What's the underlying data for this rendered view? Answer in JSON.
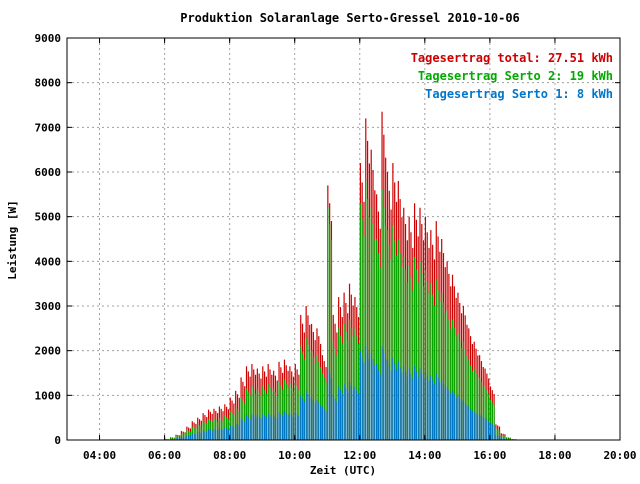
{
  "chart_data": {
    "type": "bar",
    "title": "Produktion Solaranlage Serto-Gressel 2010-10-06",
    "xlabel": "Zeit (UTC)",
    "ylabel": "Leistung [W]",
    "xlim": [
      "03:00",
      "20:00"
    ],
    "ylim": [
      0,
      9000
    ],
    "xticks": [
      "04:00",
      "06:00",
      "08:00",
      "10:00",
      "12:00",
      "14:00",
      "16:00",
      "18:00",
      "20:00"
    ],
    "yticks": [
      "0",
      "1000",
      "2000",
      "3000",
      "4000",
      "5000",
      "6000",
      "7000",
      "8000",
      "9000"
    ],
    "grid": true,
    "legend_position": "top-right",
    "stacked": true,
    "colors": {
      "total": "#cc0000",
      "serto2": "#00aa00",
      "serto1": "#0077cc"
    },
    "legend": [
      {
        "text": "Tagesertrag total: 27.51 kWh",
        "color": "#cc0000"
      },
      {
        "text": "Tagesertrag Serto 2: 19 kWh",
        "color": "#00aa00"
      },
      {
        "text": "Tagesertrag Serto 1: 8 kWh",
        "color": "#0077cc"
      }
    ],
    "series": [
      {
        "name": "total",
        "x": [
          "06:00",
          "06:10",
          "06:20",
          "06:30",
          "06:40",
          "06:50",
          "07:00",
          "07:10",
          "07:20",
          "07:30",
          "07:40",
          "07:50",
          "08:00",
          "08:10",
          "08:20",
          "08:30",
          "08:40",
          "08:50",
          "09:00",
          "09:10",
          "09:20",
          "09:30",
          "09:40",
          "09:50",
          "10:00",
          "10:10",
          "10:20",
          "10:30",
          "10:40",
          "10:50",
          "11:00",
          "11:10",
          "11:20",
          "11:30",
          "11:40",
          "11:50",
          "12:00",
          "12:10",
          "12:20",
          "12:30",
          "12:40",
          "12:50",
          "13:00",
          "13:10",
          "13:20",
          "13:30",
          "13:40",
          "13:50",
          "14:00",
          "14:10",
          "14:20",
          "14:30",
          "14:40",
          "14:50",
          "15:00",
          "15:10",
          "15:20",
          "15:30",
          "15:40",
          "15:50",
          "16:00",
          "16:10",
          "16:20",
          "16:30",
          "16:40",
          "16:50"
        ],
        "values": [
          20,
          60,
          120,
          200,
          300,
          420,
          500,
          600,
          680,
          700,
          750,
          800,
          950,
          1100,
          1400,
          1650,
          1700,
          1600,
          1650,
          1700,
          1550,
          1750,
          1800,
          1650,
          1700,
          2800,
          3000,
          2600,
          2500,
          1900,
          5700,
          2800,
          3200,
          3300,
          3500,
          3200,
          6200,
          7200,
          6500,
          5500,
          7350,
          6000,
          6200,
          5800,
          5200,
          5000,
          5300,
          5200,
          5000,
          4700,
          4900,
          4500,
          4000,
          3700,
          3300,
          3000,
          2500,
          2200,
          1900,
          1600,
          1200,
          350,
          150,
          60,
          20,
          5
        ]
      },
      {
        "name": "Serto 2",
        "x": [
          "06:00",
          "06:10",
          "06:20",
          "06:30",
          "06:40",
          "06:50",
          "07:00",
          "07:10",
          "07:20",
          "07:30",
          "07:40",
          "07:50",
          "08:00",
          "08:10",
          "08:20",
          "08:30",
          "08:40",
          "08:50",
          "09:00",
          "09:10",
          "09:20",
          "09:30",
          "09:40",
          "09:50",
          "10:00",
          "10:10",
          "10:20",
          "10:30",
          "10:40",
          "10:50",
          "11:00",
          "11:10",
          "11:20",
          "11:30",
          "11:40",
          "11:50",
          "12:00",
          "12:10",
          "12:20",
          "12:30",
          "12:40",
          "12:50",
          "13:00",
          "13:10",
          "13:20",
          "13:30",
          "13:40",
          "13:50",
          "14:00",
          "14:10",
          "14:20",
          "14:30",
          "14:40",
          "14:50",
          "15:00",
          "15:10",
          "15:20",
          "15:30",
          "15:40",
          "15:50",
          "16:00",
          "16:10",
          "16:20",
          "16:30",
          "16:40",
          "16:50"
        ],
        "values": [
          15,
          45,
          90,
          150,
          220,
          300,
          350,
          420,
          470,
          480,
          500,
          550,
          650,
          750,
          950,
          1150,
          1200,
          1150,
          1200,
          1250,
          1150,
          1300,
          1350,
          1250,
          1300,
          2100,
          2300,
          2000,
          1900,
          1500,
          5200,
          2200,
          2500,
          2600,
          2700,
          2500,
          5300,
          5800,
          5200,
          4500,
          5600,
          4700,
          4800,
          4500,
          4100,
          3900,
          4100,
          4000,
          3800,
          3500,
          3600,
          3300,
          2900,
          2700,
          2400,
          2200,
          1800,
          1600,
          1400,
          1200,
          900,
          250,
          100,
          45,
          15,
          4
        ]
      },
      {
        "name": "Serto 1",
        "x": [
          "06:00",
          "06:10",
          "06:20",
          "06:30",
          "06:40",
          "06:50",
          "07:00",
          "07:10",
          "07:20",
          "07:30",
          "07:40",
          "07:50",
          "08:00",
          "08:10",
          "08:20",
          "08:30",
          "08:40",
          "08:50",
          "09:00",
          "09:10",
          "09:20",
          "09:30",
          "09:40",
          "09:50",
          "10:00",
          "10:10",
          "10:20",
          "10:30",
          "10:40",
          "10:50",
          "11:00",
          "11:10",
          "11:20",
          "11:30",
          "11:40",
          "11:50",
          "12:00",
          "12:10",
          "12:20",
          "12:30",
          "12:40",
          "12:50",
          "13:00",
          "13:10",
          "13:20",
          "13:30",
          "13:40",
          "13:50",
          "14:00",
          "14:10",
          "14:20",
          "14:30",
          "14:40",
          "14:50",
          "15:00",
          "15:10",
          "15:20",
          "15:30",
          "15:40",
          "15:50",
          "16:00",
          "16:10",
          "16:20",
          "16:30",
          "16:40",
          "16:50"
        ],
        "values": [
          8,
          20,
          45,
          75,
          110,
          150,
          180,
          210,
          240,
          250,
          260,
          280,
          330,
          380,
          480,
          550,
          580,
          560,
          580,
          600,
          560,
          620,
          650,
          600,
          620,
          1000,
          1100,
          950,
          900,
          750,
          1600,
          1000,
          1200,
          1250,
          1300,
          1200,
          2000,
          2100,
          1950,
          1700,
          2100,
          1800,
          1850,
          1750,
          1650,
          1600,
          1650,
          1600,
          1550,
          1450,
          1500,
          1350,
          1200,
          1100,
          1000,
          900,
          750,
          650,
          580,
          500,
          380,
          110,
          45,
          20,
          8,
          2
        ]
      }
    ]
  }
}
